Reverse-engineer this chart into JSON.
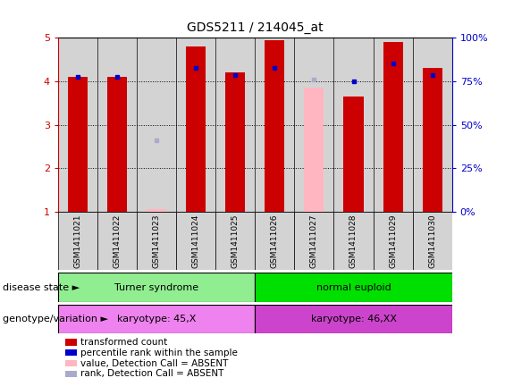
{
  "title": "GDS5211 / 214045_at",
  "samples": [
    "GSM1411021",
    "GSM1411022",
    "GSM1411023",
    "GSM1411024",
    "GSM1411025",
    "GSM1411026",
    "GSM1411027",
    "GSM1411028",
    "GSM1411029",
    "GSM1411030"
  ],
  "red_values": [
    4.1,
    4.1,
    1.05,
    4.8,
    4.2,
    4.95,
    3.85,
    3.65,
    4.9,
    4.3
  ],
  "blue_values": [
    4.1,
    4.1,
    2.65,
    4.3,
    4.15,
    4.3,
    4.05,
    4.0,
    4.4,
    4.15
  ],
  "absent_mask": [
    false,
    false,
    true,
    false,
    false,
    false,
    true,
    false,
    false,
    false
  ],
  "ylim_left": [
    1,
    5
  ],
  "ylim_right": [
    0,
    100
  ],
  "yticks_left": [
    1,
    2,
    3,
    4,
    5
  ],
  "yticks_right": [
    0,
    25,
    50,
    75,
    100
  ],
  "group1_label": "Turner syndrome",
  "group1_color": "#90ee90",
  "group2_label": "normal euploid",
  "group2_color": "#00e000",
  "karyotype1_label": "karyotype: 45,X",
  "karyotype1_color": "#ee82ee",
  "karyotype2_label": "karyotype: 46,XX",
  "karyotype2_color": "#cc44cc",
  "group1_samples": 5,
  "group2_samples": 5,
  "bar_color_present": "#cc0000",
  "bar_color_absent": "#ffb6c1",
  "dot_color_present": "#0000cc",
  "dot_color_absent": "#aaaacc",
  "col_bg_color": "#d3d3d3",
  "background_color": "#ffffff",
  "legend_items": [
    {
      "label": "transformed count",
      "color": "#cc0000",
      "shape": "s"
    },
    {
      "label": "percentile rank within the sample",
      "color": "#0000cc",
      "shape": "s"
    },
    {
      "label": "value, Detection Call = ABSENT",
      "color": "#ffb6c1",
      "shape": "s"
    },
    {
      "label": "rank, Detection Call = ABSENT",
      "color": "#aaaacc",
      "shape": "s"
    }
  ]
}
